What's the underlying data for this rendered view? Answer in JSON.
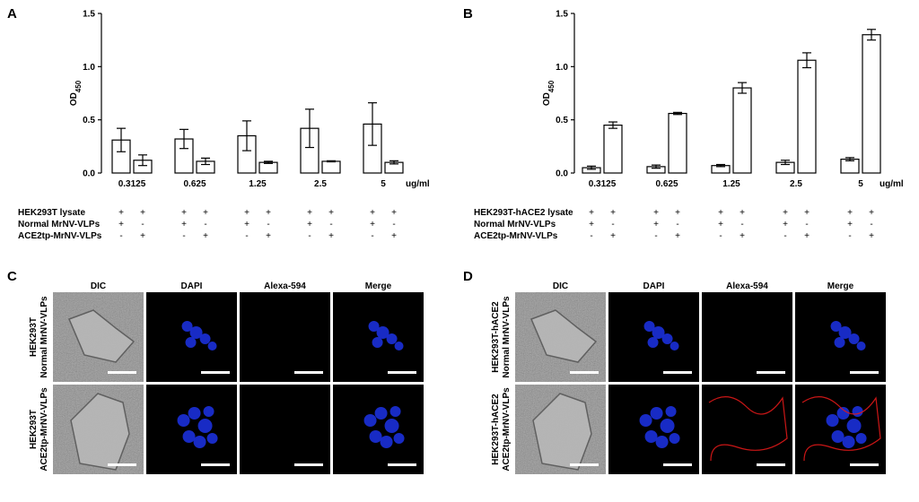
{
  "panels": {
    "a": "A",
    "b": "B",
    "c": "C",
    "d": "D"
  },
  "chart_data": [
    {
      "type": "bar",
      "panel": "A",
      "ylabel": "OD",
      "ylabel_sub": "450",
      "x_unit": "ug/ml",
      "ylim": [
        0,
        1.5
      ],
      "yticks": [
        "0.0",
        "0.5",
        "1.0",
        "1.5"
      ],
      "categories": [
        "0.3125",
        "0.625",
        "1.25",
        "2.5",
        "5"
      ],
      "series": [
        {
          "values": [
            0.31,
            0.32,
            0.35,
            0.42,
            0.46
          ],
          "errors": [
            0.11,
            0.09,
            0.14,
            0.18,
            0.2
          ]
        },
        {
          "values": [
            0.12,
            0.11,
            0.1,
            0.11,
            0.1
          ],
          "errors": [
            0.05,
            0.03,
            0.01,
            0.005,
            0.015
          ]
        }
      ],
      "conditions": [
        {
          "label": "HEK293T lysate",
          "signs": [
            [
              "+",
              "+"
            ],
            [
              "+",
              "+"
            ],
            [
              "+",
              "+"
            ],
            [
              "+",
              "+"
            ],
            [
              "+",
              "+"
            ]
          ]
        },
        {
          "label": "Normal MrNV-VLPs",
          "signs": [
            [
              "+",
              "-"
            ],
            [
              "+",
              "-"
            ],
            [
              "+",
              "-"
            ],
            [
              "+",
              "-"
            ],
            [
              "+",
              "-"
            ]
          ]
        },
        {
          "label": "ACE2tp-MrNV-VLPs",
          "signs": [
            [
              "-",
              "+"
            ],
            [
              "-",
              "+"
            ],
            [
              "-",
              "+"
            ],
            [
              "-",
              "+"
            ],
            [
              "-",
              "+"
            ]
          ]
        }
      ]
    },
    {
      "type": "bar",
      "panel": "B",
      "ylabel": "OD",
      "ylabel_sub": "450",
      "x_unit": "ug/ml",
      "ylim": [
        0,
        1.5
      ],
      "yticks": [
        "0.0",
        "0.5",
        "1.0",
        "1.5"
      ],
      "categories": [
        "0.3125",
        "0.625",
        "1.25",
        "2.5",
        "5"
      ],
      "series": [
        {
          "values": [
            0.05,
            0.06,
            0.07,
            0.1,
            0.13
          ],
          "errors": [
            0.015,
            0.015,
            0.01,
            0.02,
            0.015
          ]
        },
        {
          "values": [
            0.45,
            0.56,
            0.8,
            1.06,
            1.3
          ],
          "errors": [
            0.03,
            0.01,
            0.05,
            0.07,
            0.05
          ]
        }
      ],
      "conditions": [
        {
          "label": "HEK293T-hACE2 lysate",
          "signs": [
            [
              "+",
              "+"
            ],
            [
              "+",
              "+"
            ],
            [
              "+",
              "+"
            ],
            [
              "+",
              "+"
            ],
            [
              "+",
              "+"
            ]
          ]
        },
        {
          "label": "Normal MrNV-VLPs",
          "signs": [
            [
              "+",
              "-"
            ],
            [
              "+",
              "-"
            ],
            [
              "+",
              "-"
            ],
            [
              "+",
              "-"
            ],
            [
              "+",
              "-"
            ]
          ]
        },
        {
          "label": "ACE2tp-MrNV-VLPs",
          "signs": [
            [
              "-",
              "+"
            ],
            [
              "-",
              "+"
            ],
            [
              "-",
              "+"
            ],
            [
              "-",
              "+"
            ],
            [
              "-",
              "+"
            ]
          ]
        }
      ]
    }
  ],
  "micrographs": {
    "columns": [
      "DIC",
      "DAPI",
      "Alexa-594",
      "Merge"
    ],
    "c_rows": [
      [
        "HEK293T",
        "Normal MrNV-VLPs"
      ],
      [
        "HEK293T",
        "ACE2tp-MrNV-VLPs"
      ]
    ],
    "d_rows": [
      [
        "HEK293T-hACE2",
        "Normal MrNV-VLPs"
      ],
      [
        "HEK293T-hACE2",
        "ACE2tp-MrNV-VLPs"
      ]
    ]
  },
  "colors": {
    "nucleus": "#1a2fd6",
    "alexa": "#e01818",
    "dic_bg": "#8a8a8a",
    "bar_stroke": "#000000"
  }
}
